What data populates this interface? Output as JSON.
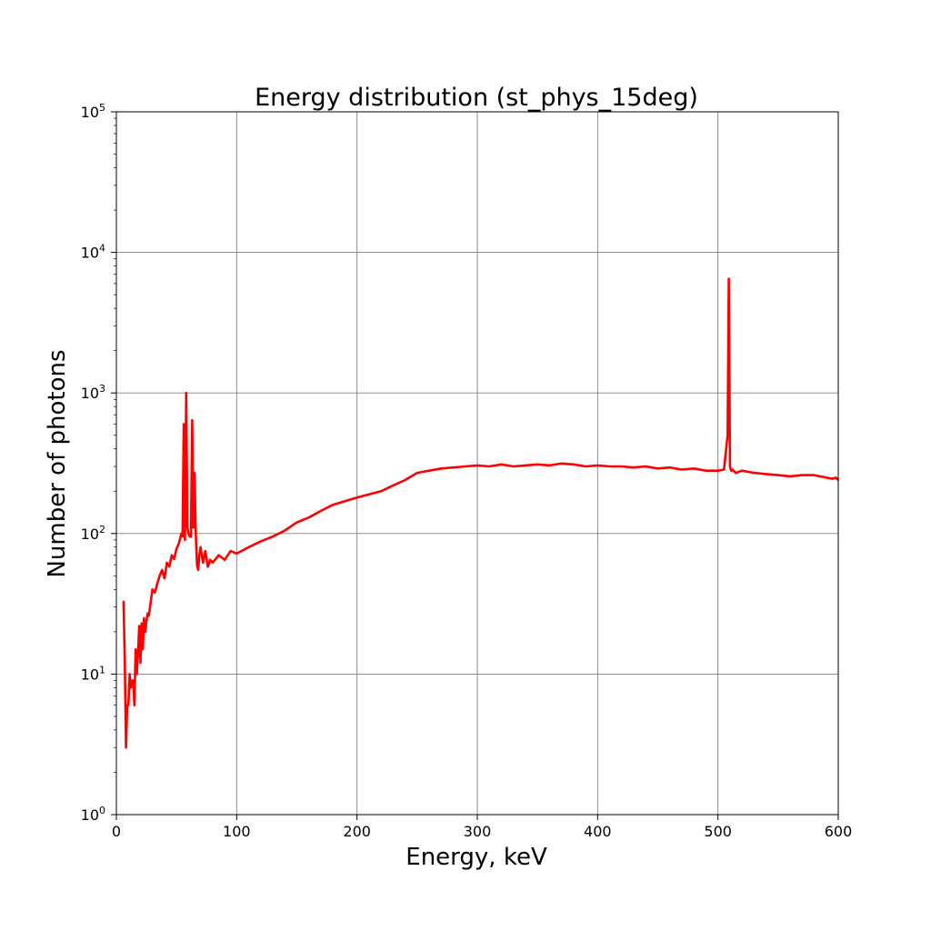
{
  "chart_data": {
    "type": "line",
    "title": "Energy distribution (st_phys_15deg)",
    "xlabel": "Energy, keV",
    "ylabel": "Number of photons",
    "xlim": [
      0,
      600
    ],
    "ylim": [
      1,
      100000
    ],
    "yscale": "log",
    "grid": true,
    "legend": "none",
    "color": "#ff0000",
    "x_ticks": [
      {
        "value": 0,
        "label": "0"
      },
      {
        "value": 100,
        "label": "100"
      },
      {
        "value": 200,
        "label": "200"
      },
      {
        "value": 300,
        "label": "300"
      },
      {
        "value": 400,
        "label": "400"
      },
      {
        "value": 500,
        "label": "500"
      },
      {
        "value": 600,
        "label": "600"
      }
    ],
    "y_ticks": [
      {
        "value": 1,
        "base": "10",
        "exp": "0"
      },
      {
        "value": 10,
        "base": "10",
        "exp": "1"
      },
      {
        "value": 100,
        "base": "10",
        "exp": "2"
      },
      {
        "value": 1000,
        "base": "10",
        "exp": "3"
      },
      {
        "value": 10000,
        "base": "10",
        "exp": "4"
      },
      {
        "value": 100000,
        "base": "10",
        "exp": "5"
      }
    ],
    "series": [
      {
        "x": [
          6,
          7,
          8,
          9,
          10,
          11,
          12,
          13,
          14,
          15,
          16,
          17,
          18,
          19,
          20,
          21,
          22,
          23,
          24,
          25,
          26,
          27,
          28,
          29,
          30,
          32,
          34,
          36,
          38,
          40,
          42,
          44,
          46,
          48,
          50,
          52,
          54,
          55,
          56,
          57,
          58,
          59,
          60,
          61,
          62,
          63,
          64,
          65,
          66,
          67,
          68,
          69,
          70,
          72,
          74,
          76,
          78,
          80,
          85,
          90,
          95,
          100,
          110,
          120,
          130,
          140,
          150,
          160,
          170,
          180,
          190,
          200,
          210,
          220,
          230,
          240,
          250,
          260,
          270,
          280,
          290,
          300,
          310,
          320,
          330,
          340,
          350,
          360,
          370,
          380,
          390,
          400,
          410,
          420,
          430,
          440,
          450,
          460,
          470,
          480,
          490,
          500,
          505,
          508,
          509,
          510,
          511,
          512,
          515,
          520,
          530,
          540,
          550,
          560,
          570,
          580,
          590,
          595,
          598,
          600
        ],
        "y": [
          33,
          12,
          3,
          6,
          6,
          10,
          8,
          9,
          9,
          6,
          15,
          10,
          14,
          22,
          12,
          23,
          15,
          25,
          20,
          24,
          27,
          26,
          30,
          35,
          40,
          38,
          44,
          50,
          55,
          48,
          62,
          58,
          70,
          66,
          78,
          85,
          100,
          95,
          600,
          90,
          1000,
          110,
          100,
          95,
          95,
          640,
          110,
          270,
          100,
          60,
          55,
          70,
          80,
          62,
          75,
          58,
          65,
          62,
          70,
          65,
          75,
          72,
          80,
          88,
          95,
          105,
          120,
          130,
          145,
          160,
          170,
          180,
          190,
          200,
          220,
          240,
          270,
          280,
          290,
          295,
          300,
          305,
          300,
          310,
          300,
          305,
          310,
          305,
          315,
          310,
          300,
          305,
          300,
          300,
          295,
          300,
          290,
          295,
          285,
          290,
          280,
          280,
          285,
          500,
          6500,
          300,
          280,
          285,
          270,
          280,
          270,
          265,
          260,
          255,
          260,
          260,
          250,
          245,
          250,
          240
        ]
      }
    ]
  }
}
